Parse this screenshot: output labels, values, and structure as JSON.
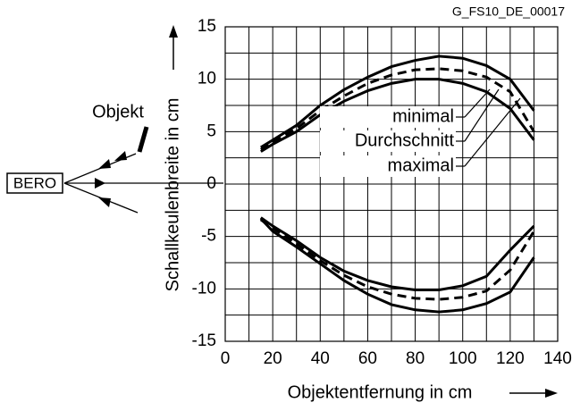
{
  "chart_data": {
    "type": "line",
    "id_label": "G_FS10_DE_00017",
    "xlabel": "Objektentfernung in cm",
    "ylabel": "Schallkeulenbreite in cm",
    "sensor_label": "BERO",
    "object_label": "Objekt",
    "x": [
      15,
      20,
      30,
      40,
      50,
      60,
      70,
      80,
      90,
      100,
      110,
      120,
      130
    ],
    "series": [
      {
        "name": "minimal",
        "color": "#000000",
        "dashed": false,
        "upper": [
          3.1,
          3.8,
          5.0,
          6.6,
          7.9,
          8.9,
          9.6,
          10.0,
          10.0,
          9.6,
          8.8,
          7.2,
          4.2
        ],
        "lower": [
          -3.2,
          -4.0,
          -5.4,
          -7.0,
          -8.3,
          -9.2,
          -9.8,
          -10.1,
          -10.1,
          -9.7,
          -8.8,
          -6.3,
          -4.0
        ]
      },
      {
        "name": "Durchschnitt",
        "color": "#000000",
        "dashed": true,
        "upper": [
          3.3,
          4.0,
          5.3,
          7.0,
          8.4,
          9.6,
          10.4,
          10.9,
          11.0,
          10.8,
          10.2,
          8.8,
          5.0
        ],
        "lower": [
          -3.4,
          -4.2,
          -5.7,
          -7.3,
          -8.7,
          -9.8,
          -10.5,
          -10.9,
          -11.0,
          -10.8,
          -10.2,
          -8.2,
          -4.5
        ]
      },
      {
        "name": "maximal",
        "color": "#000000",
        "dashed": false,
        "upper": [
          3.5,
          4.2,
          5.6,
          7.5,
          9.0,
          10.2,
          11.2,
          11.8,
          12.2,
          12.0,
          11.3,
          10.0,
          7.0
        ],
        "lower": [
          -3.3,
          -4.5,
          -6.0,
          -7.6,
          -9.2,
          -10.5,
          -11.5,
          -12.0,
          -12.2,
          -12.0,
          -11.4,
          -10.3,
          -7.0
        ]
      }
    ],
    "xlim": [
      0,
      140
    ],
    "ylim": [
      -15,
      15
    ],
    "xticks": [
      0,
      20,
      40,
      60,
      80,
      100,
      120,
      140
    ],
    "yticks": [
      -15,
      -10,
      -5,
      0,
      5,
      10,
      15
    ],
    "xgrid": [
      10,
      30,
      50,
      70,
      90,
      110,
      130
    ],
    "ygrid": [
      -12.5,
      -7.5,
      -2.5,
      2.5,
      7.5,
      12.5
    ],
    "grid": true
  }
}
